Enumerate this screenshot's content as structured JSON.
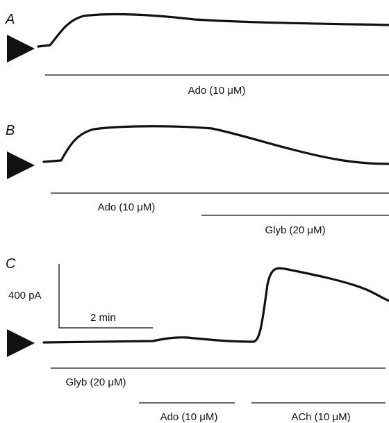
{
  "panels": [
    {
      "label": "A",
      "drugs": [
        "Ado (10 μM)"
      ]
    },
    {
      "label": "B",
      "drugs": [
        "Ado (10 μM)",
        "Glyb (20 μM)"
      ]
    },
    {
      "label": "C",
      "drugs": [
        "Glyb (20 μM)",
        "Ado (10 μM)",
        "ACh (10 μM)"
      ]
    }
  ],
  "scale_bar": {
    "current": "400 pA",
    "time": "2 min"
  }
}
